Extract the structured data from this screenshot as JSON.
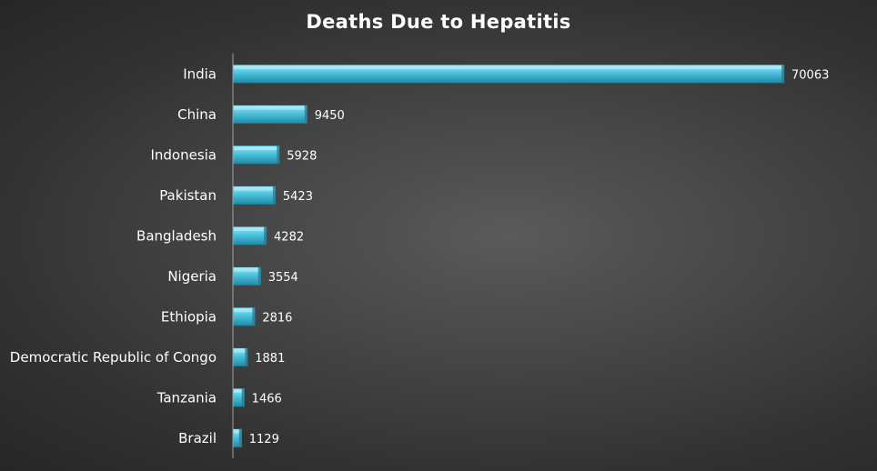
{
  "chart_data": {
    "type": "bar",
    "orientation": "horizontal",
    "title": "Deaths Due to Hepatitis",
    "xlabel": "",
    "ylabel": "",
    "categories": [
      "India",
      "China",
      "Indonesia",
      "Pakistan",
      "Bangladesh",
      "Nigeria",
      "Ethiopia",
      "Democratic Republic of Congo",
      "Tanzania",
      "Brazil"
    ],
    "values": [
      70063,
      9450,
      5928,
      5423,
      4282,
      3554,
      2816,
      1881,
      1466,
      1129
    ],
    "xlim": [
      0,
      70063
    ],
    "grid": false,
    "legend": "none",
    "data_labels": true,
    "colors": {
      "bar_top": "#8fe4f5",
      "bar_mid": "#4cc2dd",
      "bar_bottom": "#1e8aa6",
      "bar_end": "#2a7c93",
      "text": "#ffffff",
      "axis": "#a0a0a0"
    }
  }
}
